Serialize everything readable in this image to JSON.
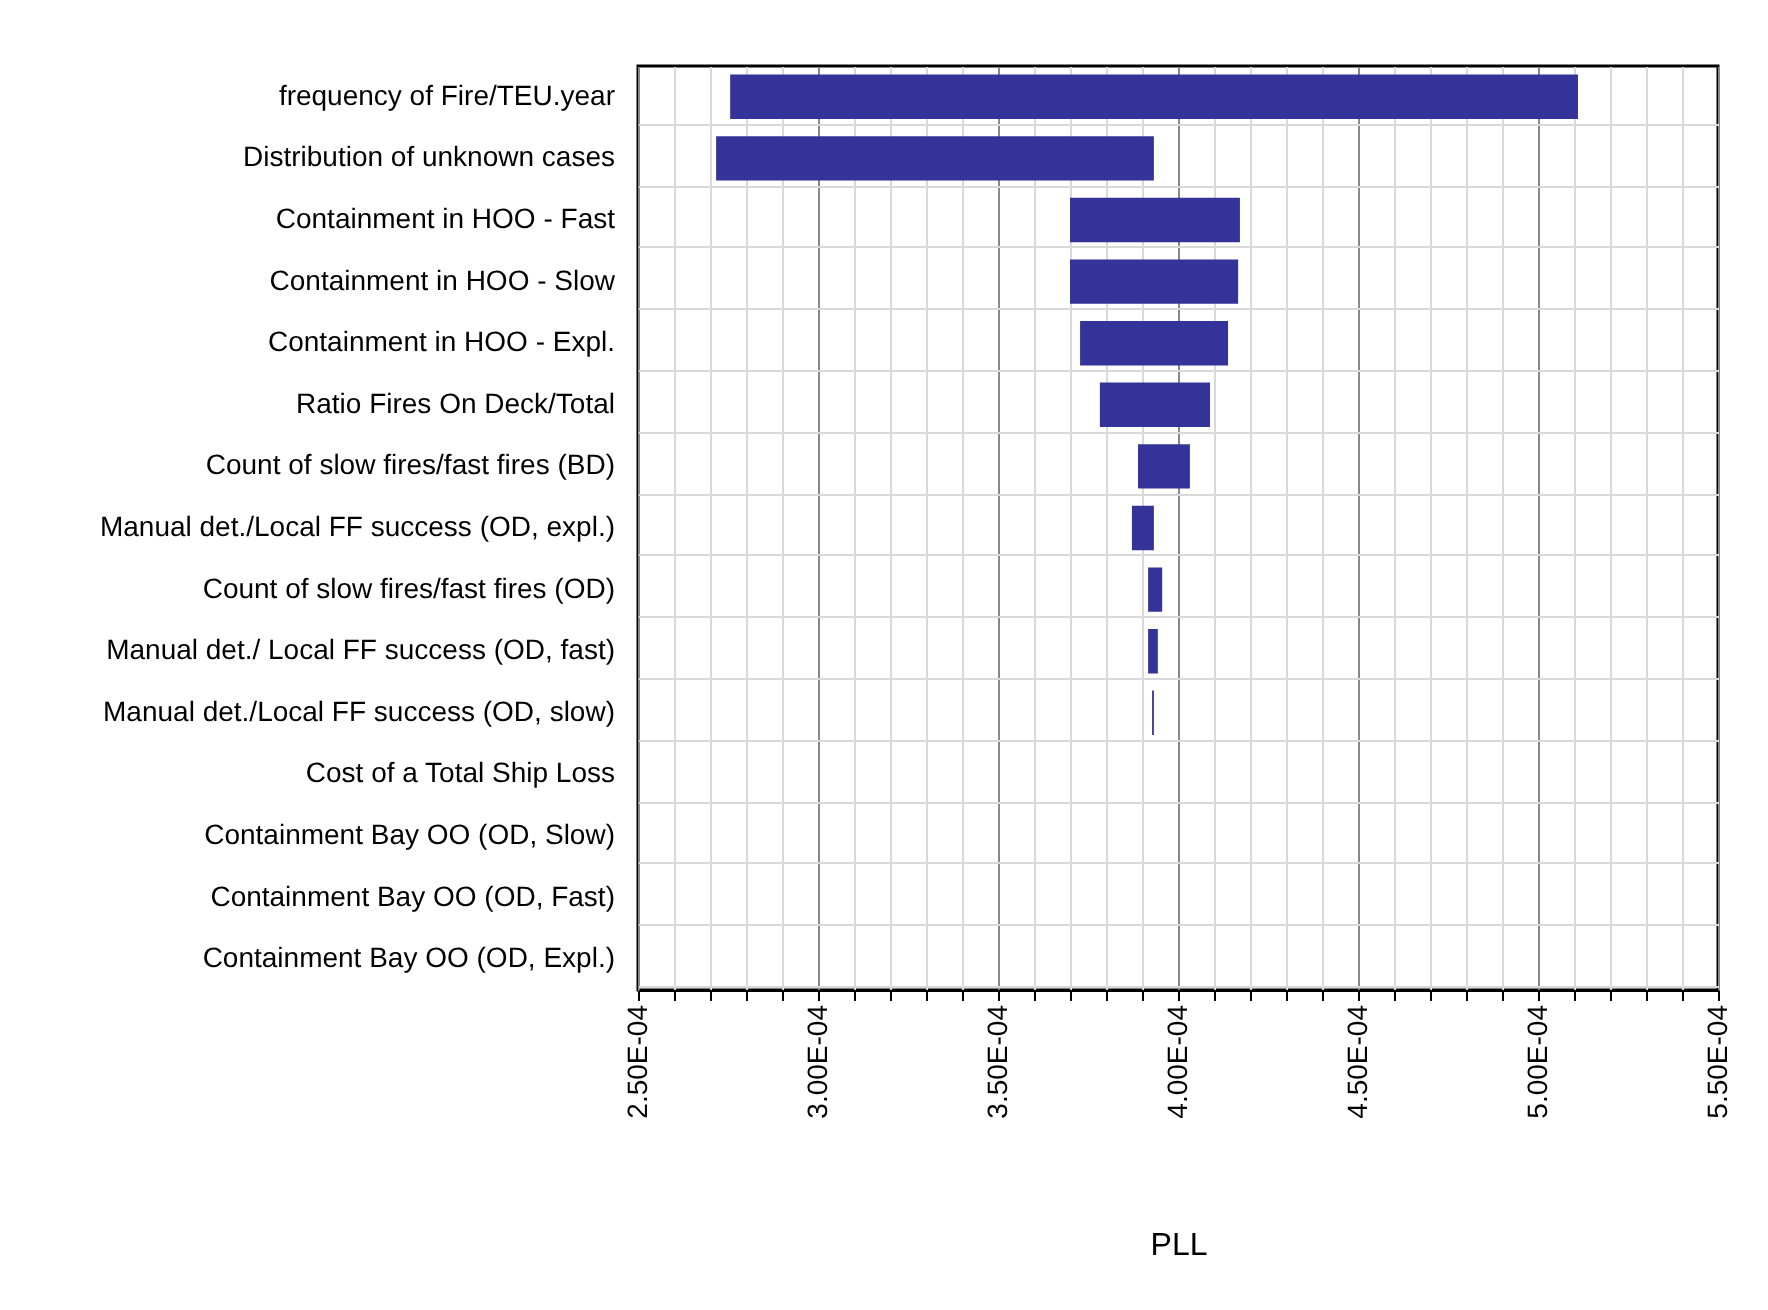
{
  "chart_data": {
    "type": "bar",
    "orientation": "horizontal",
    "xlabel": "PLL",
    "categories": [
      "frequency of Fire/TEU.year",
      "Distribution of unknown cases",
      "Containment in HOO - Fast",
      "Containment in HOO - Slow",
      "Containment in HOO - Expl.",
      "Ratio Fires On Deck/Total",
      "Count of slow fires/fast fires (BD)",
      "Manual det./Local FF success (OD, expl.)",
      "Count of slow fires/fast fires (OD)",
      "Manual det./ Local FF success (OD, fast)",
      "Manual det./Local FF success (OD, slow)",
      "Cost of a Total Ship Loss",
      "Containment Bay OO (OD, Slow)",
      "Containment Bay OO (OD, Fast)",
      "Containment Bay OO (OD, Expl.)"
    ],
    "base": [
      0.0002756,
      0.0002717,
      0.00037,
      0.00037,
      0.0003728,
      0.0003783,
      0.0003889,
      0.0003872,
      0.0003917,
      0.0003917,
      0.0003928,
      null,
      null,
      null,
      null
    ],
    "values": [
      0.0002355,
      0.0001216,
      4.72e-05,
      4.67e-05,
      4.11e-05,
      3.06e-05,
      1.44e-05,
      6.1e-06,
      3.9e-06,
      2.7e-06,
      5e-07,
      null,
      null,
      null,
      null
    ],
    "color": "#333399",
    "xlim": [
      0.00025,
      0.00055
    ],
    "xticks": [
      {
        "value": 0.00025,
        "label": "2.50E-04"
      },
      {
        "value": 0.00026,
        "label": null
      },
      {
        "value": 0.00027,
        "label": null
      },
      {
        "value": 0.00028,
        "label": null
      },
      {
        "value": 0.00029,
        "label": null
      },
      {
        "value": 0.0003,
        "label": "3.00E-04"
      },
      {
        "value": 0.00031,
        "label": null
      },
      {
        "value": 0.00032,
        "label": null
      },
      {
        "value": 0.00033,
        "label": null
      },
      {
        "value": 0.00034,
        "label": null
      },
      {
        "value": 0.00035,
        "label": "3.50E-04"
      },
      {
        "value": 0.00036,
        "label": null
      },
      {
        "value": 0.00037,
        "label": null
      },
      {
        "value": 0.00038,
        "label": null
      },
      {
        "value": 0.00039,
        "label": null
      },
      {
        "value": 0.0004,
        "label": "4.00E-04"
      },
      {
        "value": 0.00041,
        "label": null
      },
      {
        "value": 0.00042,
        "label": null
      },
      {
        "value": 0.00043,
        "label": null
      },
      {
        "value": 0.00044,
        "label": null
      },
      {
        "value": 0.00045,
        "label": "4.50E-04"
      },
      {
        "value": 0.00046,
        "label": null
      },
      {
        "value": 0.00047,
        "label": null
      },
      {
        "value": 0.00048,
        "label": null
      },
      {
        "value": 0.00049,
        "label": null
      },
      {
        "value": 0.0005,
        "label": "5.00E-04"
      },
      {
        "value": 0.00051,
        "label": null
      },
      {
        "value": 0.00052,
        "label": null
      },
      {
        "value": 0.00053,
        "label": null
      },
      {
        "value": 0.00054,
        "label": null
      },
      {
        "value": 0.00055,
        "label": "5.50E-04"
      }
    ],
    "grid": true
  }
}
